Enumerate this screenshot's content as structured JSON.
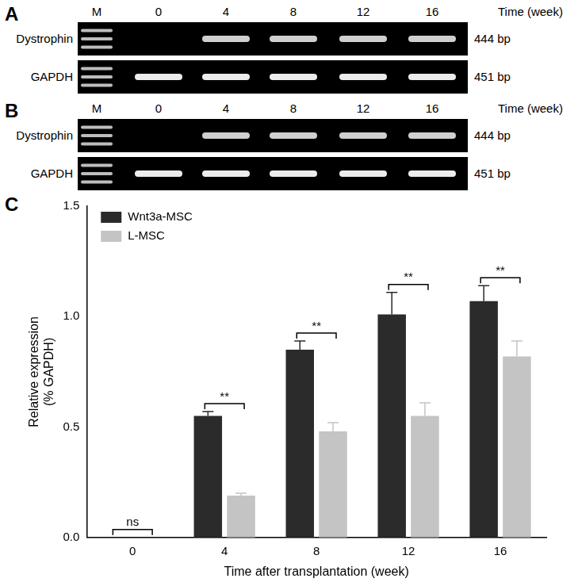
{
  "gels": [
    {
      "panel_label": "A",
      "lanes": [
        "M",
        "0",
        "4",
        "8",
        "12",
        "16"
      ],
      "lane_header": "Time (week)",
      "rows": [
        {
          "label": "Dystrophin",
          "size": "444 bp",
          "bands": [
            false,
            true,
            true,
            true,
            true
          ]
        },
        {
          "label": "GAPDH",
          "size": "451 bp",
          "bands": [
            true,
            true,
            true,
            true,
            true
          ]
        }
      ]
    },
    {
      "panel_label": "B",
      "lanes": [
        "M",
        "0",
        "4",
        "8",
        "12",
        "16"
      ],
      "lane_header": "Time (week)",
      "rows": [
        {
          "label": "Dystrophin",
          "size": "444 bp",
          "bands": [
            false,
            true,
            true,
            true,
            true
          ]
        },
        {
          "label": "GAPDH",
          "size": "451 bp",
          "bands": [
            true,
            true,
            true,
            true,
            true
          ]
        }
      ]
    }
  ],
  "chart_panel_label": "C",
  "chart_data": {
    "type": "bar",
    "categories": [
      "0",
      "4",
      "8",
      "12",
      "16"
    ],
    "x_label": "Time after transplantation (week)",
    "y_label": [
      "Relative expression",
      "(% GAPDH)"
    ],
    "ylim": [
      0,
      1.5
    ],
    "yticks": [
      {
        "value": 0,
        "label": "0.0"
      },
      0.5,
      {
        "value": 1,
        "label": "1.0"
      },
      1.5
    ],
    "grid": false,
    "legend": "top-left",
    "series": [
      {
        "name": "Wnt3a-MSC",
        "color": "#2b2b2b",
        "values": [
          0,
          0.55,
          0.85,
          1.01,
          1.07
        ],
        "errors": [
          0,
          0.02,
          0.04,
          0.1,
          0.07
        ]
      },
      {
        "name": "L-MSC",
        "color": "#c4c4c4",
        "values": [
          0,
          0.19,
          0.48,
          0.55,
          0.82
        ],
        "errors": [
          0,
          0.01,
          0.04,
          0.06,
          0.07
        ]
      }
    ],
    "annotations": [
      {
        "category": "0",
        "text": "ns"
      },
      {
        "category": "4",
        "text": "**"
      },
      {
        "category": "8",
        "text": "**"
      },
      {
        "category": "12",
        "text": "**"
      },
      {
        "category": "16",
        "text": "**"
      }
    ]
  }
}
